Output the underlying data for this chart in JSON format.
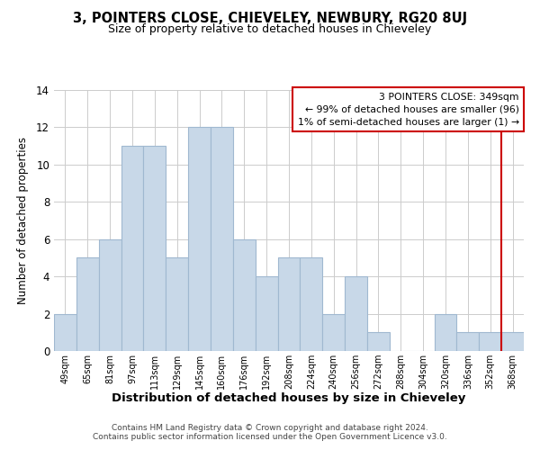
{
  "title": "3, POINTERS CLOSE, CHIEVELEY, NEWBURY, RG20 8UJ",
  "subtitle": "Size of property relative to detached houses in Chieveley",
  "xlabel": "Distribution of detached houses by size in Chieveley",
  "ylabel": "Number of detached properties",
  "bar_labels": [
    "49sqm",
    "65sqm",
    "81sqm",
    "97sqm",
    "113sqm",
    "129sqm",
    "145sqm",
    "160sqm",
    "176sqm",
    "192sqm",
    "208sqm",
    "224sqm",
    "240sqm",
    "256sqm",
    "272sqm",
    "288sqm",
    "304sqm",
    "320sqm",
    "336sqm",
    "352sqm",
    "368sqm"
  ],
  "bar_values": [
    2,
    5,
    6,
    11,
    11,
    5,
    12,
    12,
    6,
    4,
    5,
    5,
    2,
    4,
    1,
    0,
    0,
    2,
    1,
    1,
    1
  ],
  "bar_color": "#c8d8e8",
  "bar_edge_color": "#a0b8d0",
  "ylim": [
    0,
    14
  ],
  "yticks": [
    0,
    2,
    4,
    6,
    8,
    10,
    12,
    14
  ],
  "property_line_color": "#cc0000",
  "annotation_text": "3 POINTERS CLOSE: 349sqm\n← 99% of detached houses are smaller (96)\n1% of semi-detached houses are larger (1) →",
  "annotation_box_color": "#ffffff",
  "annotation_box_edge": "#cc0000",
  "footer_line1": "Contains HM Land Registry data © Crown copyright and database right 2024.",
  "footer_line2": "Contains public sector information licensed under the Open Government Licence v3.0.",
  "background_color": "#ffffff",
  "grid_color": "#cccccc"
}
